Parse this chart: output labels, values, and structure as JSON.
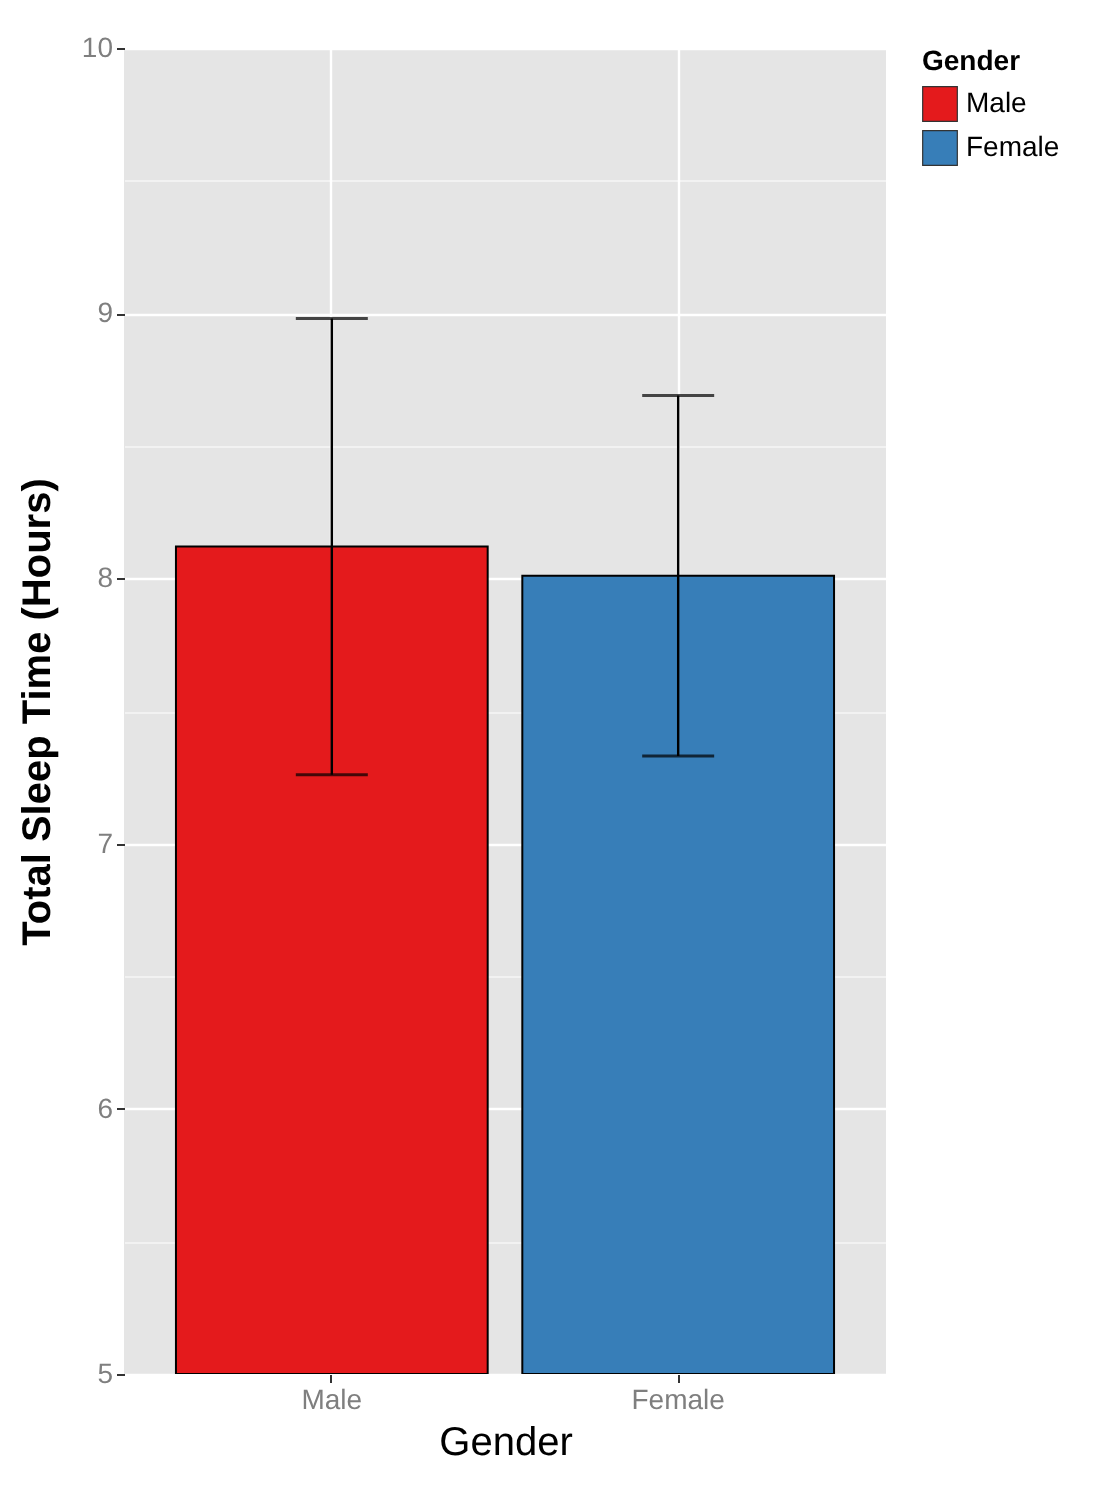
{
  "chart_data": {
    "type": "bar",
    "xlabel": "Gender",
    "ylabel": "Total Sleep Time (Hours)",
    "legend_title": "Gender",
    "categories": [
      "Male",
      "Female"
    ],
    "series": [
      {
        "name": "Male",
        "color": "#e41a1c",
        "values": [
          8.12,
          null
        ],
        "errors": [
          0.86,
          null
        ]
      },
      {
        "name": "Female",
        "color": "#377eb8",
        "values": [
          null,
          8.01
        ],
        "errors": [
          null,
          0.68
        ]
      }
    ],
    "ylim": [
      5,
      10
    ],
    "yticks": [
      5,
      {
        "value": 5.5,
        "label": null
      },
      6,
      {
        "value": 6.5,
        "label": null
      },
      7,
      {
        "value": 7.5,
        "label": null
      },
      8,
      {
        "value": 8.5,
        "label": null
      },
      9,
      {
        "value": 9.5,
        "label": null
      },
      10
    ],
    "grid": true,
    "legend": "right"
  }
}
